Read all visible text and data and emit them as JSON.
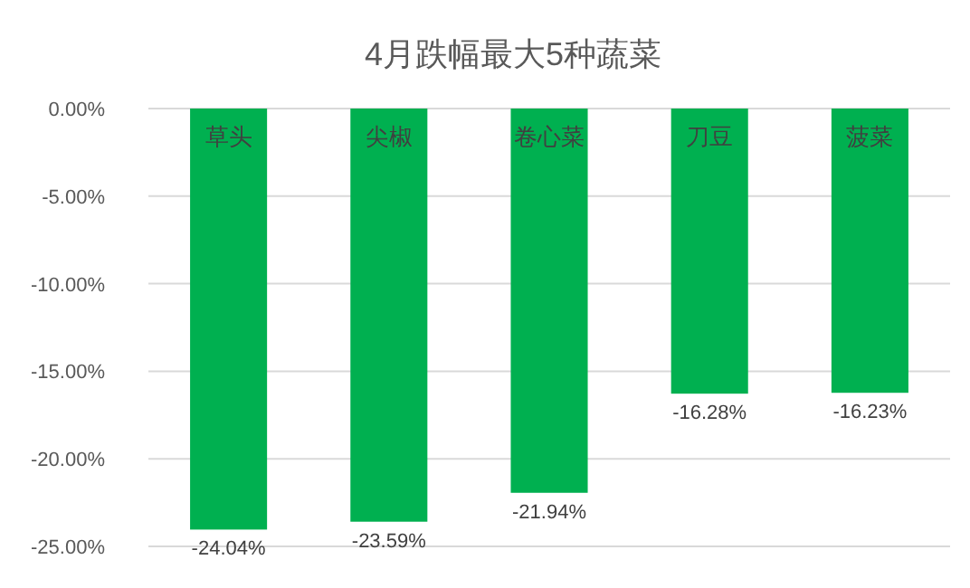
{
  "chart_data": {
    "type": "bar",
    "title": "4月跌幅最大5种蔬菜",
    "categories": [
      "草头",
      "尖椒",
      "卷心菜",
      "刀豆",
      "菠菜"
    ],
    "values": [
      -24.04,
      -23.59,
      -21.94,
      -16.28,
      -16.23
    ],
    "value_labels": [
      "-24.04%",
      "-23.59%",
      "-21.94%",
      "-16.28%",
      "-16.23%"
    ],
    "color": "#00b050",
    "ylim": [
      -25,
      0
    ],
    "yticks": [
      {
        "value": 0,
        "label": "0.00%"
      },
      {
        "value": -5,
        "label": "-5.00%"
      },
      {
        "value": -10,
        "label": "-10.00%"
      },
      {
        "value": -15,
        "label": "-15.00%"
      },
      {
        "value": -20,
        "label": "-20.00%"
      },
      {
        "value": -25,
        "label": "-25.00%"
      }
    ],
    "grid": "y"
  }
}
